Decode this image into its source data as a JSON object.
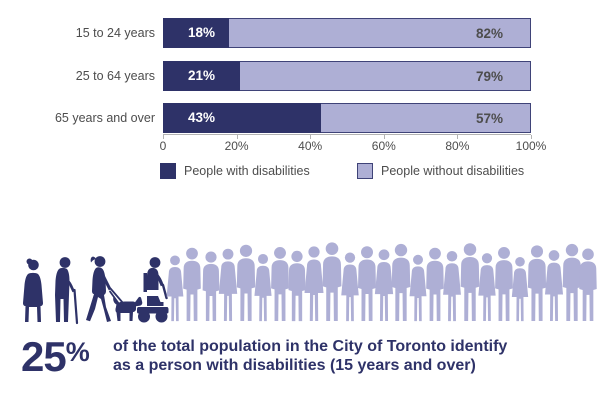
{
  "chart_data": {
    "type": "bar",
    "stacked": true,
    "orientation": "horizontal",
    "categories": [
      "15 to 24 years",
      "25 to 64 years",
      "65 years and over"
    ],
    "series": [
      {
        "name": "People with disabilities",
        "color": "#2e3268",
        "values": [
          18,
          21,
          43
        ],
        "labels": [
          "18%",
          "21%",
          "43%"
        ]
      },
      {
        "name": "People without disabilities",
        "color": "#aeafd5",
        "values": [
          82,
          79,
          57
        ],
        "labels": [
          "82%",
          "79%",
          "57%"
        ]
      }
    ],
    "x_axis": {
      "min": 0,
      "max": 100,
      "ticks": [
        "0",
        "20%",
        "40%",
        "60%",
        "80%",
        "100%"
      ]
    },
    "legend_position": "bottom",
    "grid": false
  },
  "infographic": {
    "stat_value": "25",
    "stat_unit": "%",
    "description_line1": "of the total population in the City of Toronto identify",
    "description_line2": "as a person with disabilities (15 years and over)"
  },
  "colors": {
    "with_disabilities": "#2e3268",
    "without_disabilities": "#aeafd5",
    "text_navy": "#2e3268",
    "text_gray": "#4d4d4d",
    "axis_line": "#b3b3b3"
  },
  "icons": {
    "dark_group": "people-with-disabilities-silhouettes",
    "crowd": "crowd-silhouette"
  }
}
